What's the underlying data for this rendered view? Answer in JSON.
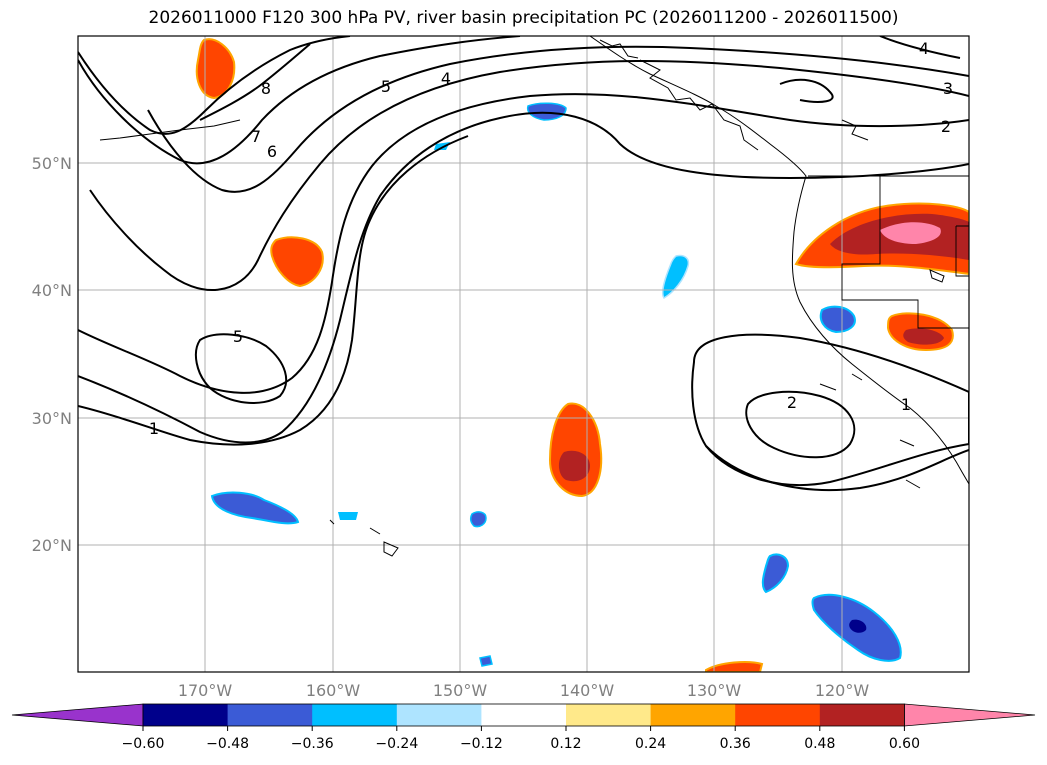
{
  "title": "2026011000 F120 300 hPa PV, river basin precipitation PC (2026011200 - 2026011500)",
  "lon_labels": [
    "170°W",
    "160°W",
    "150°W",
    "140°W",
    "130°W",
    "120°W"
  ],
  "lat_labels": [
    "50°N",
    "40°N",
    "30°N",
    "20°N"
  ],
  "colorbar": {
    "colors": [
      "#9933cc",
      "#00008b",
      "#3b5bd6",
      "#00bfff",
      "#aee4ff",
      "#ffffff",
      "#ffe98a",
      "#ffa500",
      "#ff4500",
      "#b22222",
      "#ff85aa"
    ],
    "tick_labels": [
      "−0.60",
      "−0.48",
      "−0.36",
      "−0.24",
      "−0.12",
      "0.12",
      "0.24",
      "0.36",
      "0.48",
      "0.60"
    ]
  },
  "contour_labels": [
    "8",
    "7",
    "6",
    "5",
    "4",
    "4",
    "3",
    "2",
    "5",
    "2",
    "1",
    "1"
  ],
  "colors": {
    "grid": "#b0b0b0",
    "contour": "#000000",
    "positive": "#ff4500",
    "positive_strong": "#b22222",
    "positive_max": "#ff85aa",
    "negative": "#3b5bd6",
    "negative_strong": "#00008b",
    "negative_weak": "#00bfff"
  }
}
